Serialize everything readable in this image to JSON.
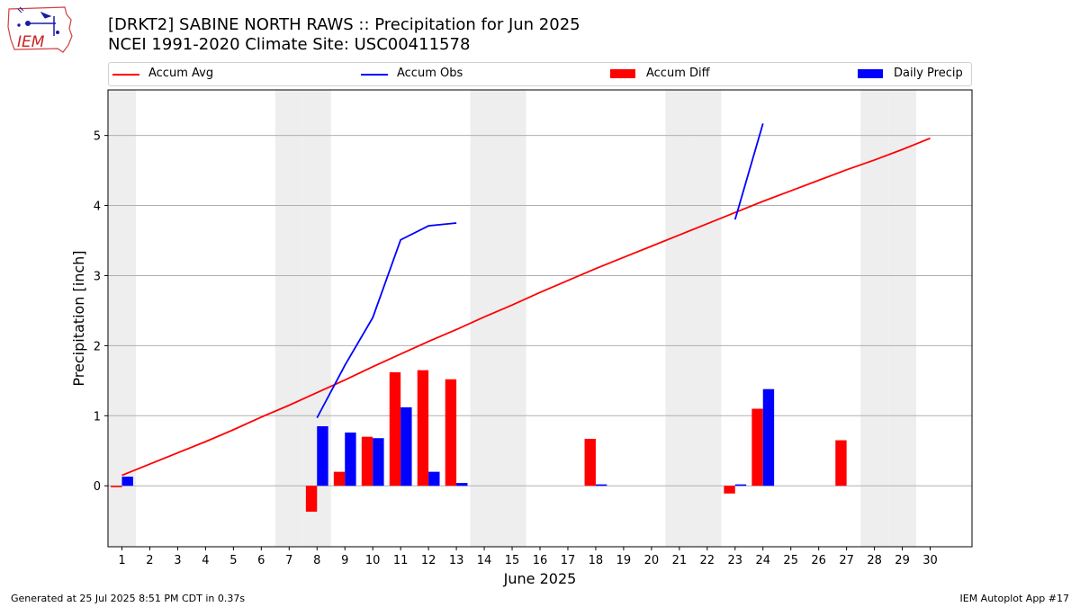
{
  "header": {
    "title_line1": "[DRKT2] SABINE NORTH RAWS :: Precipitation for Jun 2025",
    "title_line2": "NCEI 1991-2020 Climate Site: USC00411578",
    "logo_text": "IEM"
  },
  "legend": [
    {
      "label": "Accum Avg",
      "kind": "line",
      "color": "#ff0000"
    },
    {
      "label": "Accum Obs",
      "kind": "line",
      "color": "#0000ff"
    },
    {
      "label": "Accum Diff",
      "kind": "bar",
      "color": "#ff0000"
    },
    {
      "label": "Daily Precip",
      "kind": "bar",
      "color": "#0000ff"
    }
  ],
  "footer": {
    "left": "Generated at 25 Jul 2025 8:51 PM CDT in 0.37s",
    "right": "IEM Autoplot App #17"
  },
  "chart_data": {
    "type": "bar",
    "xlabel": "June 2025",
    "ylabel": "Precipitation [inch]",
    "xlim": [
      0.5,
      31.5
    ],
    "ylim": [
      -0.87,
      5.65
    ],
    "yticks": [
      0,
      1,
      2,
      3,
      4,
      5
    ],
    "xticks": [
      1,
      2,
      3,
      4,
      5,
      6,
      7,
      8,
      9,
      10,
      11,
      12,
      13,
      14,
      15,
      16,
      17,
      18,
      19,
      20,
      21,
      22,
      23,
      24,
      25,
      26,
      27,
      28,
      29,
      30
    ],
    "weekend_days": [
      1,
      7,
      8,
      14,
      15,
      21,
      22,
      28,
      29
    ],
    "grid": "horizontal",
    "legend_position": "top",
    "series": [
      {
        "name": "Accum Avg",
        "kind": "line",
        "color": "#ff0000",
        "x": [
          1,
          2,
          3,
          4,
          5,
          6,
          7,
          8,
          9,
          10,
          11,
          12,
          13,
          14,
          15,
          16,
          17,
          18,
          19,
          20,
          21,
          22,
          23,
          24,
          25,
          26,
          27,
          28,
          29,
          30
        ],
        "y": [
          0.15,
          0.31,
          0.47,
          0.63,
          0.8,
          0.98,
          1.15,
          1.33,
          1.51,
          1.7,
          1.88,
          2.06,
          2.23,
          2.41,
          2.58,
          2.76,
          2.93,
          3.1,
          3.26,
          3.42,
          3.58,
          3.74,
          3.9,
          4.06,
          4.21,
          4.36,
          4.51,
          4.65,
          4.8,
          4.96
        ]
      },
      {
        "name": "Accum Obs",
        "kind": "line",
        "color": "#0000ff",
        "segments": [
          {
            "x": [
              8,
              9,
              10,
              11,
              12,
              13
            ],
            "y": [
              0.97,
              1.72,
              2.4,
              3.51,
              3.71,
              3.75
            ]
          },
          {
            "x": [
              23,
              24
            ],
            "y": [
              3.8,
              5.17
            ]
          }
        ]
      },
      {
        "name": "Accum Diff",
        "kind": "bar",
        "color": "#ff0000",
        "x": [
          1,
          8,
          9,
          10,
          11,
          12,
          13,
          18,
          23,
          24,
          27
        ],
        "y": [
          -0.02,
          -0.37,
          0.2,
          0.7,
          1.62,
          1.65,
          1.52,
          0.67,
          -0.11,
          1.1,
          0.65
        ]
      },
      {
        "name": "Daily Precip",
        "kind": "bar",
        "color": "#0000ff",
        "x": [
          1,
          8,
          9,
          10,
          11,
          12,
          13,
          18,
          23,
          24
        ],
        "y": [
          0.13,
          0.85,
          0.76,
          0.68,
          1.12,
          0.2,
          0.04,
          0.02,
          0.02,
          1.38
        ]
      }
    ]
  }
}
